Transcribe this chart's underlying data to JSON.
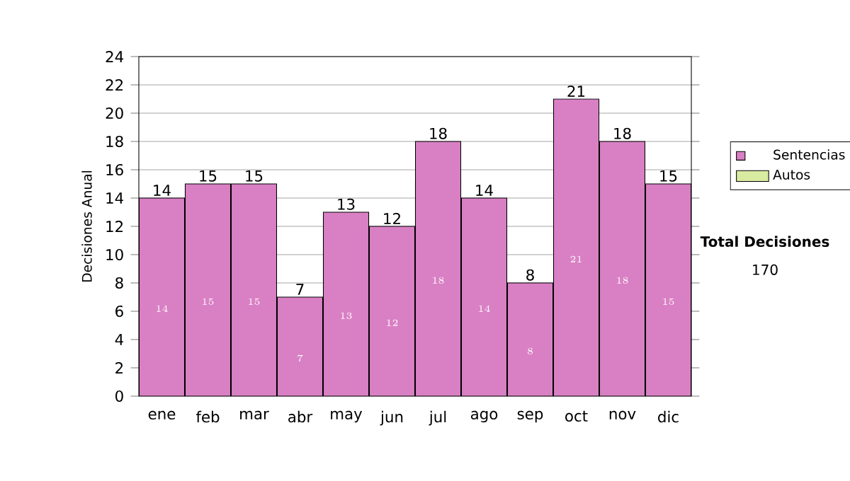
{
  "chart_data": {
    "type": "bar",
    "stacked": true,
    "ylabel": "Decisiones Anual",
    "categories": [
      "ene",
      "feb",
      "mar",
      "abr",
      "may",
      "jun",
      "jul",
      "ago",
      "sep",
      "oct",
      "nov",
      "dic"
    ],
    "series": [
      {
        "name": "Sentencias",
        "color": "#d980c4",
        "values": [
          14,
          15,
          15,
          7,
          13,
          12,
          18,
          14,
          8,
          21,
          18,
          15
        ]
      },
      {
        "name": "Autos",
        "color": "#d8eba0",
        "values": [
          null,
          null,
          null,
          null,
          null,
          null,
          null,
          null,
          null,
          null,
          null,
          null
        ]
      }
    ],
    "totals": [
      "14",
      "15",
      "15",
      "7",
      "13",
      "12",
      "18",
      "14",
      "8",
      "21",
      "18",
      "15"
    ],
    "data_labels": true,
    "ylim": [
      0,
      24
    ],
    "yticks": [
      0,
      2,
      4,
      6,
      8,
      10,
      12,
      14,
      16,
      18,
      20,
      22,
      24
    ],
    "grid": "y",
    "legend": "right",
    "annotations": [
      "Total Decisiones",
      "170"
    ]
  }
}
